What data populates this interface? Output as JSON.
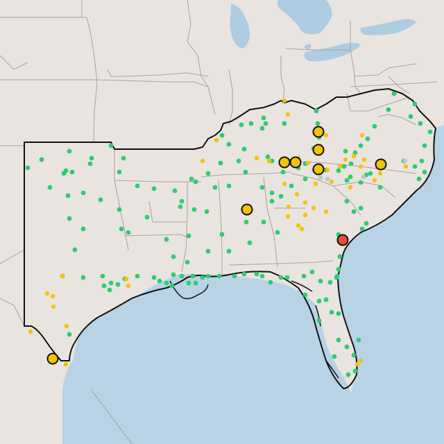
{
  "map": {
    "colors": {
      "land": "#e9e4df",
      "water": "#b9d3e6",
      "lake": "#aecce2",
      "state_border": "#a5a19d",
      "region_outline": "#111111",
      "marker_green": "#2ecc71",
      "marker_yellow": "#f4c20d",
      "marker_gray": "#c4c4c4",
      "marker_red": "#e74c3c",
      "marker_stroke": "#111111"
    },
    "marker_categories": [
      "green",
      "yellow",
      "gray",
      "large-yellow",
      "large-red"
    ],
    "large_marker_count": 10,
    "alert_marker_count": 1
  }
}
